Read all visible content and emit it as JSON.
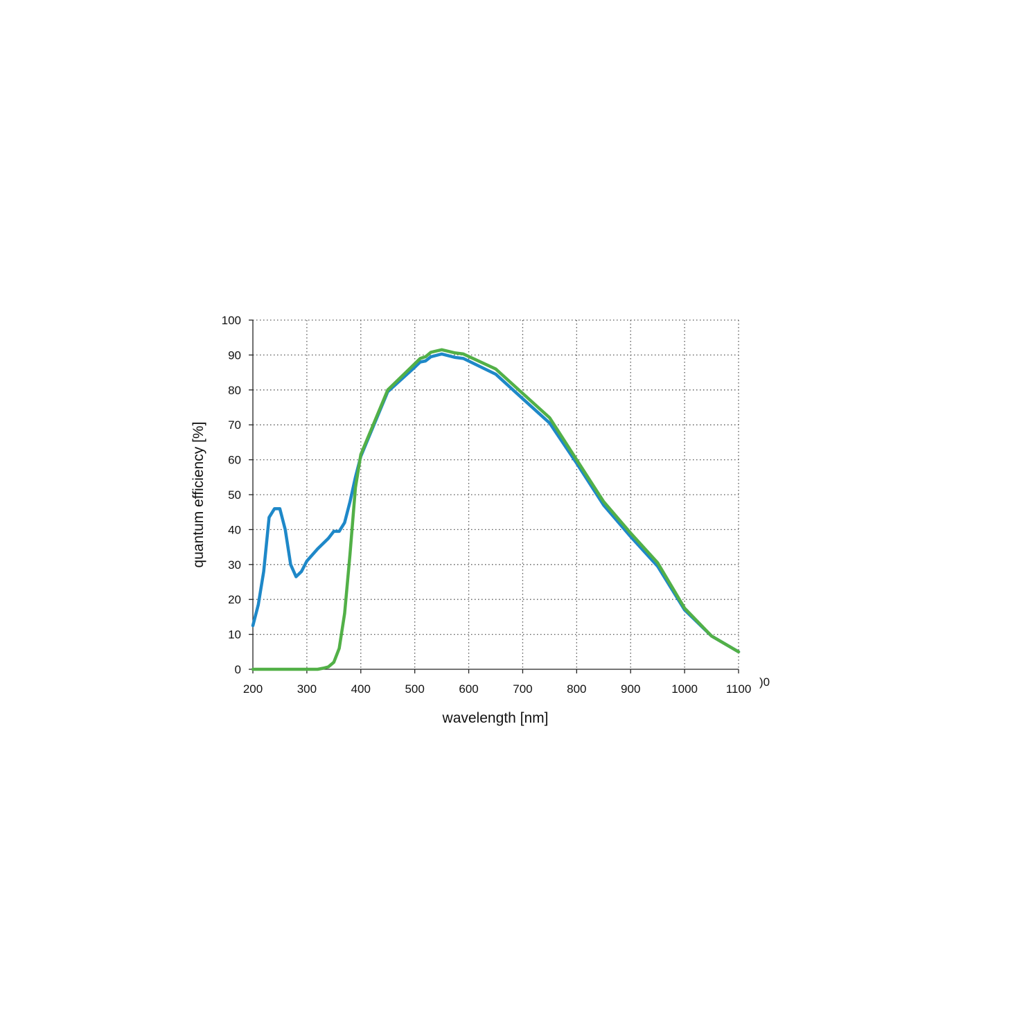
{
  "chart_data": {
    "type": "line",
    "title": "",
    "xlabel": "wavelength [nm]",
    "ylabel": "quantum efficiency [%]",
    "xlim": [
      200,
      1100
    ],
    "ylim": [
      0,
      100
    ],
    "x_ticks": [
      "200",
      "300",
      "400",
      "500",
      "600",
      "700",
      "800",
      "900",
      "1000",
      "1100"
    ],
    "y_ticks": [
      "0",
      "10",
      "20",
      "30",
      "40",
      "50",
      "60",
      "70",
      "80",
      "90",
      "100"
    ],
    "stray_label": ")0",
    "grid": true,
    "legend": "none",
    "series": [
      {
        "color": "#1e88c8",
        "points": [
          [
            200,
            12.5
          ],
          [
            210,
            18.5
          ],
          [
            220,
            28
          ],
          [
            230,
            43.5
          ],
          [
            240,
            46
          ],
          [
            250,
            46
          ],
          [
            260,
            40
          ],
          [
            270,
            30
          ],
          [
            280,
            26.5
          ],
          [
            290,
            28
          ],
          [
            300,
            31
          ],
          [
            320,
            34.5
          ],
          [
            340,
            37.5
          ],
          [
            350,
            39.5
          ],
          [
            360,
            39.5
          ],
          [
            370,
            42
          ],
          [
            380,
            48
          ],
          [
            390,
            55
          ],
          [
            400,
            61
          ],
          [
            450,
            79.5
          ],
          [
            500,
            86.5
          ],
          [
            510,
            88
          ],
          [
            520,
            88.3
          ],
          [
            530,
            89.5
          ],
          [
            550,
            90.3
          ],
          [
            575,
            89.3
          ],
          [
            590,
            89
          ],
          [
            650,
            84.5
          ],
          [
            700,
            77.5
          ],
          [
            750,
            70.5
          ],
          [
            800,
            59
          ],
          [
            850,
            47
          ],
          [
            900,
            38
          ],
          [
            950,
            29.5
          ],
          [
            1000,
            17
          ],
          [
            1050,
            9.5
          ],
          [
            1100,
            5
          ]
        ]
      },
      {
        "color": "#52b047",
        "points": [
          [
            200,
            0
          ],
          [
            300,
            0
          ],
          [
            320,
            0
          ],
          [
            330,
            0.3
          ],
          [
            340,
            0.7
          ],
          [
            350,
            2
          ],
          [
            360,
            6
          ],
          [
            370,
            16
          ],
          [
            380,
            33
          ],
          [
            390,
            52
          ],
          [
            400,
            61.5
          ],
          [
            450,
            80
          ],
          [
            500,
            87.5
          ],
          [
            510,
            89
          ],
          [
            520,
            89.5
          ],
          [
            530,
            90.8
          ],
          [
            550,
            91.5
          ],
          [
            575,
            90.6
          ],
          [
            590,
            90.3
          ],
          [
            650,
            86
          ],
          [
            700,
            79
          ],
          [
            750,
            72
          ],
          [
            800,
            60
          ],
          [
            850,
            48
          ],
          [
            900,
            39
          ],
          [
            950,
            30.5
          ],
          [
            1000,
            17.5
          ],
          [
            1050,
            9.5
          ],
          [
            1100,
            5
          ]
        ]
      }
    ]
  }
}
